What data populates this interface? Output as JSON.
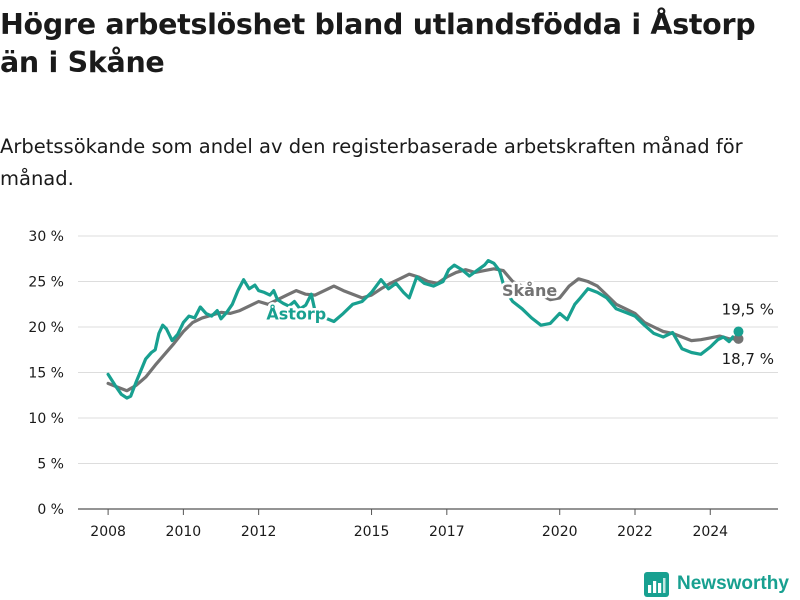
{
  "page": {
    "title": "Högre arbetslöshet bland utlandsfödda i Åstorp än i Skåne",
    "subtitle": "Arbetssökande som andel av den registerbaserade arbetskraften månad för månad.",
    "brand": "Newsworthy"
  },
  "colors": {
    "astorp": "#18a090",
    "skane": "#737373",
    "grid": "#dddddd",
    "text": "#1a1a1a",
    "brand": "#18a090"
  },
  "chart_data": {
    "type": "line",
    "title": "Högre arbetslöshet bland utlandsfödda i Åstorp än i Skåne",
    "subtitle": "Arbetssökande som andel av den registerbaserade arbetskraften månad för månad.",
    "xlabel": "",
    "ylabel": "",
    "ylim": [
      0,
      30
    ],
    "xlim": [
      2007.2,
      2025.8
    ],
    "grid": true,
    "yticks": [
      0,
      5,
      10,
      15,
      20,
      25,
      30
    ],
    "ytick_labels": [
      "0 %",
      "5 %",
      "10 %",
      "15 %",
      "20 %",
      "25 %",
      "30 %"
    ],
    "xticks": [
      2008,
      2010,
      2012,
      2015,
      2017,
      2020,
      2022,
      2024
    ],
    "xtick_labels": [
      "2008",
      "2010",
      "2012",
      "2015",
      "2017",
      "2020",
      "2022",
      "2024"
    ],
    "series": [
      {
        "name": "Skåne",
        "label": "Skåne",
        "color": "#737373",
        "end_label": "18,7 %",
        "end_value": 18.7,
        "points": [
          [
            2008.0,
            13.8
          ],
          [
            2008.25,
            13.4
          ],
          [
            2008.5,
            13.0
          ],
          [
            2008.75,
            13.6
          ],
          [
            2009.0,
            14.5
          ],
          [
            2009.25,
            15.8
          ],
          [
            2009.5,
            17.0
          ],
          [
            2009.75,
            18.2
          ],
          [
            2010.0,
            19.5
          ],
          [
            2010.25,
            20.5
          ],
          [
            2010.5,
            21.0
          ],
          [
            2010.75,
            21.3
          ],
          [
            2011.0,
            21.6
          ],
          [
            2011.25,
            21.5
          ],
          [
            2011.5,
            21.8
          ],
          [
            2011.75,
            22.3
          ],
          [
            2012.0,
            22.8
          ],
          [
            2012.25,
            22.5
          ],
          [
            2012.5,
            23.0
          ],
          [
            2012.75,
            23.5
          ],
          [
            2013.0,
            24.0
          ],
          [
            2013.25,
            23.6
          ],
          [
            2013.5,
            23.5
          ],
          [
            2013.75,
            24.0
          ],
          [
            2014.0,
            24.5
          ],
          [
            2014.25,
            24.0
          ],
          [
            2014.5,
            23.6
          ],
          [
            2014.75,
            23.2
          ],
          [
            2015.0,
            23.5
          ],
          [
            2015.25,
            24.2
          ],
          [
            2015.5,
            24.8
          ],
          [
            2015.75,
            25.3
          ],
          [
            2016.0,
            25.8
          ],
          [
            2016.25,
            25.5
          ],
          [
            2016.5,
            25.0
          ],
          [
            2016.75,
            24.8
          ],
          [
            2017.0,
            25.5
          ],
          [
            2017.25,
            26.0
          ],
          [
            2017.5,
            26.3
          ],
          [
            2017.75,
            26.0
          ],
          [
            2018.0,
            26.2
          ],
          [
            2018.25,
            26.4
          ],
          [
            2018.5,
            26.2
          ],
          [
            2018.75,
            25.0
          ],
          [
            2019.0,
            24.5
          ],
          [
            2019.25,
            24.0
          ],
          [
            2019.5,
            23.5
          ],
          [
            2019.75,
            23.0
          ],
          [
            2020.0,
            23.2
          ],
          [
            2020.25,
            24.5
          ],
          [
            2020.5,
            25.3
          ],
          [
            2020.75,
            25.0
          ],
          [
            2021.0,
            24.5
          ],
          [
            2021.25,
            23.5
          ],
          [
            2021.5,
            22.5
          ],
          [
            2021.75,
            22.0
          ],
          [
            2022.0,
            21.5
          ],
          [
            2022.25,
            20.5
          ],
          [
            2022.5,
            20.0
          ],
          [
            2022.75,
            19.5
          ],
          [
            2023.0,
            19.3
          ],
          [
            2023.25,
            18.9
          ],
          [
            2023.5,
            18.5
          ],
          [
            2023.75,
            18.6
          ],
          [
            2024.0,
            18.8
          ],
          [
            2024.25,
            19.0
          ],
          [
            2024.5,
            18.7
          ],
          [
            2024.75,
            18.7
          ]
        ]
      },
      {
        "name": "Åstorp",
        "label": "Åstorp",
        "color": "#18a090",
        "end_label": "19,5 %",
        "end_value": 19.5,
        "points": [
          [
            2008.0,
            14.8
          ],
          [
            2008.2,
            13.5
          ],
          [
            2008.35,
            12.6
          ],
          [
            2008.5,
            12.2
          ],
          [
            2008.6,
            12.4
          ],
          [
            2008.75,
            14.0
          ],
          [
            2008.9,
            15.5
          ],
          [
            2009.0,
            16.5
          ],
          [
            2009.15,
            17.2
          ],
          [
            2009.25,
            17.5
          ],
          [
            2009.35,
            19.3
          ],
          [
            2009.45,
            20.2
          ],
          [
            2009.55,
            19.8
          ],
          [
            2009.7,
            18.5
          ],
          [
            2009.85,
            19.2
          ],
          [
            2010.0,
            20.5
          ],
          [
            2010.15,
            21.2
          ],
          [
            2010.3,
            21.0
          ],
          [
            2010.45,
            22.2
          ],
          [
            2010.6,
            21.5
          ],
          [
            2010.75,
            21.2
          ],
          [
            2010.9,
            21.8
          ],
          [
            2011.0,
            20.9
          ],
          [
            2011.15,
            21.6
          ],
          [
            2011.3,
            22.5
          ],
          [
            2011.45,
            24.0
          ],
          [
            2011.6,
            25.2
          ],
          [
            2011.75,
            24.2
          ],
          [
            2011.9,
            24.6
          ],
          [
            2012.0,
            24.0
          ],
          [
            2012.15,
            23.8
          ],
          [
            2012.3,
            23.5
          ],
          [
            2012.4,
            24.0
          ],
          [
            2012.5,
            23.0
          ],
          [
            2012.65,
            22.6
          ],
          [
            2012.8,
            22.3
          ],
          [
            2012.95,
            22.8
          ],
          [
            2013.1,
            22.0
          ],
          [
            2013.25,
            22.4
          ],
          [
            2013.4,
            23.6
          ],
          [
            2013.5,
            21.7
          ],
          [
            2013.65,
            21.2
          ],
          [
            2014.0,
            20.6
          ],
          [
            2014.25,
            21.5
          ],
          [
            2014.5,
            22.5
          ],
          [
            2014.75,
            22.8
          ],
          [
            2015.0,
            23.8
          ],
          [
            2015.25,
            25.2
          ],
          [
            2015.45,
            24.2
          ],
          [
            2015.65,
            24.8
          ],
          [
            2015.85,
            23.8
          ],
          [
            2016.0,
            23.2
          ],
          [
            2016.2,
            25.5
          ],
          [
            2016.4,
            24.8
          ],
          [
            2016.65,
            24.5
          ],
          [
            2016.9,
            25.0
          ],
          [
            2017.05,
            26.3
          ],
          [
            2017.2,
            26.8
          ],
          [
            2017.4,
            26.3
          ],
          [
            2017.6,
            25.6
          ],
          [
            2017.8,
            26.2
          ],
          [
            2018.0,
            26.8
          ],
          [
            2018.1,
            27.3
          ],
          [
            2018.25,
            27.0
          ],
          [
            2018.4,
            26.2
          ],
          [
            2018.55,
            24.0
          ],
          [
            2018.75,
            22.8
          ],
          [
            2019.0,
            22.0
          ],
          [
            2019.25,
            21.0
          ],
          [
            2019.5,
            20.2
          ],
          [
            2019.75,
            20.4
          ],
          [
            2020.0,
            21.5
          ],
          [
            2020.2,
            20.8
          ],
          [
            2020.4,
            22.5
          ],
          [
            2020.55,
            23.2
          ],
          [
            2020.75,
            24.2
          ],
          [
            2021.0,
            23.8
          ],
          [
            2021.25,
            23.2
          ],
          [
            2021.5,
            22.0
          ],
          [
            2021.75,
            21.6
          ],
          [
            2022.0,
            21.2
          ],
          [
            2022.25,
            20.2
          ],
          [
            2022.5,
            19.3
          ],
          [
            2022.75,
            18.9
          ],
          [
            2023.0,
            19.4
          ],
          [
            2023.25,
            17.6
          ],
          [
            2023.5,
            17.2
          ],
          [
            2023.75,
            17.0
          ],
          [
            2024.0,
            17.8
          ],
          [
            2024.2,
            18.6
          ],
          [
            2024.35,
            18.9
          ],
          [
            2024.5,
            18.4
          ],
          [
            2024.6,
            18.9
          ],
          [
            2024.7,
            18.4
          ],
          [
            2024.75,
            19.5
          ]
        ]
      }
    ],
    "annotations": [
      {
        "text": "Åstorp",
        "series": "Åstorp",
        "x": 2013.0,
        "y": 20.8
      },
      {
        "text": "Skåne",
        "series": "Skåne",
        "x": 2019.2,
        "y": 23.4
      }
    ]
  }
}
